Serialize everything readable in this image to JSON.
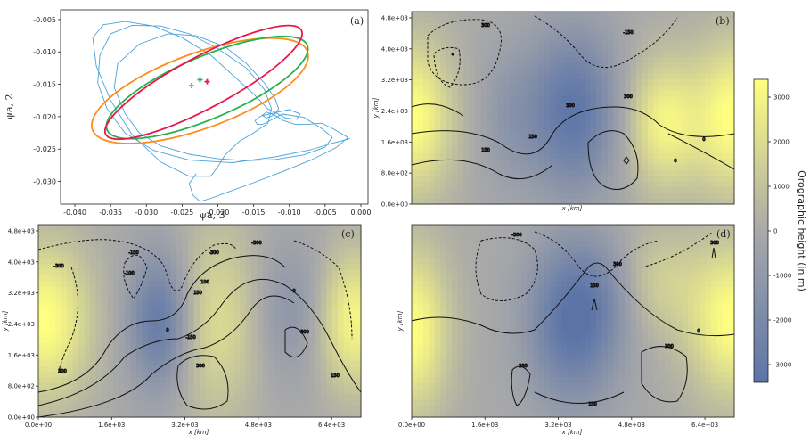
{
  "colors": {
    "trajectory": "#4aa3d8",
    "orange": "#ff8c1a",
    "green": "#27b050",
    "red": "#e8174a",
    "cbar_low": "#5b74a8",
    "cbar_mid": "#a9a9a9",
    "cbar_high": "#ffff80"
  },
  "chart_data": [
    {
      "panel": "(a)",
      "type": "line",
      "xlabel": "ψa, 3",
      "ylabel": "ψa, 2",
      "xlim": [
        -0.042,
        0.001
      ],
      "ylim": [
        -0.0335,
        -0.0035
      ],
      "xticks": [
        "-0.040",
        "-0.035",
        "-0.030",
        "-0.025",
        "-0.020",
        "-0.015",
        "-0.010",
        "-0.005",
        "0.000"
      ],
      "xtick_values": [
        -0.04,
        -0.035,
        -0.03,
        -0.025,
        -0.02,
        -0.015,
        -0.01,
        -0.005,
        0.0
      ],
      "yticks": [
        "-0.005",
        "-0.010",
        "-0.015",
        "-0.020",
        "-0.025",
        "-0.030"
      ],
      "ytick_values": [
        -0.005,
        -0.01,
        -0.015,
        -0.02,
        -0.025,
        -0.03
      ],
      "series": [
        {
          "kind": "trajectory",
          "color": "#4aa3d8",
          "x": [
            -0.0015,
            -0.004,
            -0.007,
            -0.012,
            -0.018,
            -0.024,
            -0.029,
            -0.033,
            -0.0355,
            -0.0368,
            -0.0365,
            -0.035,
            -0.032,
            -0.028,
            -0.024,
            -0.02,
            -0.016,
            -0.0135,
            -0.0125,
            -0.013,
            -0.015,
            -0.017,
            -0.019,
            -0.02,
            -0.021,
            -0.024,
            -0.028,
            -0.032,
            -0.035,
            -0.037,
            -0.0375,
            -0.036,
            -0.033,
            -0.029,
            -0.025,
            -0.021,
            -0.018,
            -0.015,
            -0.013,
            -0.0105,
            -0.009,
            -0.0085,
            -0.01,
            -0.012,
            -0.014,
            -0.0148,
            -0.0145,
            -0.0138,
            -0.0125,
            -0.011,
            -0.008,
            -0.0055,
            -0.004,
            -0.005,
            -0.008,
            -0.012,
            -0.016,
            -0.02,
            -0.024,
            -0.028,
            -0.031,
            -0.033,
            -0.0345,
            -0.034,
            -0.031,
            -0.027,
            -0.023,
            -0.019,
            -0.016,
            -0.0135,
            -0.012,
            -0.0115,
            -0.0122,
            -0.0132,
            -0.0138,
            -0.0132,
            -0.012,
            -0.0108,
            -0.0092,
            -0.0075,
            -0.0055,
            -0.004,
            -0.0018,
            -0.0035,
            -0.007,
            -0.011,
            -0.015,
            -0.0185,
            -0.021,
            -0.0225,
            -0.0235,
            -0.024,
            -0.023
          ],
          "y": [
            -0.0234,
            -0.0241,
            -0.0251,
            -0.0262,
            -0.0271,
            -0.0267,
            -0.0252,
            -0.0225,
            -0.0188,
            -0.0148,
            -0.0105,
            -0.0072,
            -0.0059,
            -0.006,
            -0.0072,
            -0.0095,
            -0.0125,
            -0.0158,
            -0.0188,
            -0.021,
            -0.0225,
            -0.0238,
            -0.0259,
            -0.0277,
            -0.0292,
            -0.0292,
            -0.027,
            -0.0228,
            -0.0175,
            -0.0122,
            -0.0078,
            -0.0058,
            -0.0053,
            -0.006,
            -0.0078,
            -0.0105,
            -0.0135,
            -0.0165,
            -0.0188,
            -0.0202,
            -0.0204,
            -0.0196,
            -0.0189,
            -0.0194,
            -0.0199,
            -0.0206,
            -0.0212,
            -0.0212,
            -0.0205,
            -0.0196,
            -0.0201,
            -0.0218,
            -0.0232,
            -0.0247,
            -0.0259,
            -0.0266,
            -0.0268,
            -0.0265,
            -0.0258,
            -0.0245,
            -0.0225,
            -0.0195,
            -0.0155,
            -0.0118,
            -0.0088,
            -0.0072,
            -0.0075,
            -0.0092,
            -0.0118,
            -0.0148,
            -0.0172,
            -0.0188,
            -0.0198,
            -0.0202,
            -0.0198,
            -0.0193,
            -0.0198,
            -0.0206,
            -0.0212,
            -0.0212,
            -0.021,
            -0.0218,
            -0.0232,
            -0.0248,
            -0.0267,
            -0.0285,
            -0.0302,
            -0.0316,
            -0.0326,
            -0.0331,
            -0.0321,
            -0.0303,
            -0.0288
          ]
        },
        {
          "kind": "ellipse",
          "color": "#ff8c1a",
          "cx": -0.0225,
          "cy": -0.016,
          "rx": 0.016,
          "ry": 0.0058,
          "angle_deg": -20
        },
        {
          "kind": "ellipse",
          "color": "#27b050",
          "cx": -0.0215,
          "cy": -0.0155,
          "rx": 0.0152,
          "ry": 0.0048,
          "angle_deg": -23
        },
        {
          "kind": "ellipse",
          "color": "#e8174a",
          "cx": -0.022,
          "cy": -0.0147,
          "rx": 0.0155,
          "ry": 0.004,
          "angle_deg": -28
        }
      ],
      "markers": [
        {
          "x": -0.0237,
          "y": -0.0152,
          "color": "#ff8c1a",
          "symbol": "+"
        },
        {
          "x": -0.0225,
          "y": -0.0143,
          "color": "#27b050",
          "symbol": "+"
        },
        {
          "x": -0.0215,
          "y": -0.0146,
          "color": "#e8174a",
          "symbol": "+"
        }
      ]
    },
    {
      "panel": "(b)",
      "type": "heatmap",
      "xlabel": "x [km]",
      "ylabel": "y [km]",
      "xticks": [],
      "yticks": [
        "0.0e+00",
        "8.0e+02",
        "1.6e+03",
        "2.4e+03",
        "3.2e+03",
        "4.0e+03",
        "4.8e+03"
      ],
      "field": {
        "hills": [
          {
            "x": 0.0,
            "y": 0.55,
            "a": 1.0,
            "sx": 0.09,
            "sy": 0.28
          },
          {
            "x": 1.0,
            "y": 0.55,
            "a": 1.0,
            "sx": 0.09,
            "sy": 0.28
          },
          {
            "x": 0.78,
            "y": 0.58,
            "a": 0.85,
            "sx": 0.08,
            "sy": 0.24
          }
        ],
        "valleys": [
          {
            "x": 0.5,
            "y": 0.52,
            "a": 0.95,
            "sx": 0.1,
            "sy": 0.3
          },
          {
            "x": 0.3,
            "y": 0.55,
            "a": 0.3,
            "sx": 0.07,
            "sy": 0.25
          }
        ]
      },
      "contour_labels": [
        "300",
        "-150",
        "150",
        "300",
        "150",
        "0",
        "300",
        "0"
      ]
    },
    {
      "panel": "(c)",
      "type": "heatmap",
      "xlabel": "x [km]",
      "ylabel": "y [km]",
      "xticks": [
        "0.0e+00",
        "1.6e+03",
        "3.2e+03",
        "4.8e+03",
        "6.4e+03"
      ],
      "yticks": [
        "0.0e+00",
        "8.0e+02",
        "1.6e+03",
        "2.4e+03",
        "3.2e+03",
        "4.0e+03",
        "4.8e+03"
      ],
      "field": {
        "hills": [
          {
            "x": 0.02,
            "y": 0.5,
            "a": 1.0,
            "sx": 0.1,
            "sy": 0.28
          },
          {
            "x": 0.55,
            "y": 0.5,
            "a": 0.6,
            "sx": 0.1,
            "sy": 0.35
          },
          {
            "x": 0.98,
            "y": 0.5,
            "a": 0.9,
            "sx": 0.08,
            "sy": 0.25
          }
        ],
        "valleys": [
          {
            "x": 0.38,
            "y": 0.5,
            "a": 0.95,
            "sx": 0.07,
            "sy": 0.25
          },
          {
            "x": 0.78,
            "y": 0.45,
            "a": 0.4,
            "sx": 0.08,
            "sy": 0.25
          }
        ]
      },
      "contour_labels": [
        "-300",
        "-300",
        "-150",
        "-100",
        "100",
        "150",
        "0",
        "-150",
        "300",
        "300",
        "-300",
        "0",
        "300",
        "150"
      ]
    },
    {
      "panel": "(d)",
      "type": "heatmap",
      "xlabel": "x [km]",
      "ylabel": "y [km]",
      "xticks": [
        "0.0e+00",
        "1.6e+03",
        "3.2e+03",
        "4.8e+03",
        "6.4e+03"
      ],
      "yticks": [],
      "field": {
        "hills": [
          {
            "x": 0.0,
            "y": 0.55,
            "a": 1.0,
            "sx": 0.08,
            "sy": 0.3
          },
          {
            "x": 1.0,
            "y": 0.5,
            "a": 1.0,
            "sx": 0.1,
            "sy": 0.28
          },
          {
            "x": 0.75,
            "y": 0.3,
            "a": 0.45,
            "sx": 0.1,
            "sy": 0.2
          }
        ],
        "valleys": [
          {
            "x": 0.5,
            "y": 0.5,
            "a": 1.0,
            "sx": 0.1,
            "sy": 0.3
          },
          {
            "x": 0.62,
            "y": 0.35,
            "a": 0.3,
            "sx": 0.08,
            "sy": 0.2
          }
        ]
      },
      "contour_labels": [
        "-300",
        "300",
        "150",
        "0",
        "300",
        "200",
        "150",
        "300"
      ]
    },
    {
      "panel": "colorbar",
      "type": "heatmap",
      "label": "Orographic height (in m)",
      "ticks": [
        "3000",
        "2000",
        "1000",
        "0",
        "-1000",
        "-2000",
        "-3000"
      ],
      "tick_values": [
        3000,
        2000,
        1000,
        0,
        -1000,
        -2000,
        -3000
      ],
      "range": [
        -3400,
        3400
      ]
    }
  ]
}
